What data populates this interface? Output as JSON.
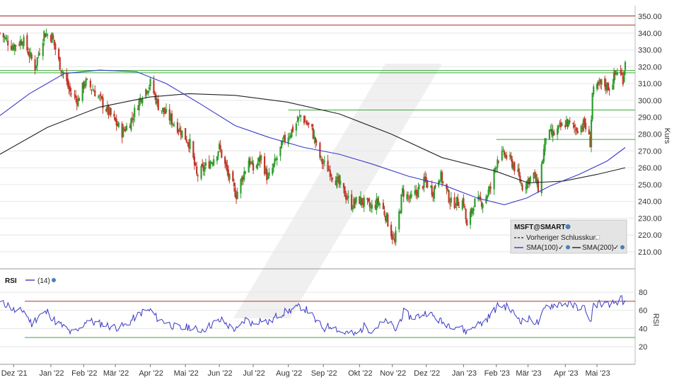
{
  "chart_data": [
    {
      "type": "candlestick",
      "symbol": "MSFT@SMART",
      "ylabel": "Kurs",
      "ylim": [
        200,
        352
      ],
      "yticks": [
        "350.00",
        "340.00",
        "330.00",
        "320.00",
        "310.00",
        "300.00",
        "290.00",
        "280.00",
        "270.00",
        "260.00",
        "250.00",
        "240.00",
        "230.00",
        "220.00",
        "210.00"
      ],
      "x_labels": [
        "Dez '21",
        "Jan '22",
        "Feb '22",
        "Mär '22",
        "Apr '22",
        "Mai '22",
        "Jun '22",
        "Jul '22",
        "Aug '22",
        "Sep '22",
        "Okt '22",
        "Nov '22",
        "Dez '22",
        "Jan '23",
        "Feb '23",
        "Mär '23",
        "Apr '23",
        "Mai '23"
      ],
      "close_series": [
        {
          "date": "2021-11-19",
          "v": 340
        },
        {
          "date": "2021-11-30",
          "v": 332
        },
        {
          "date": "2021-12-09",
          "v": 336
        },
        {
          "date": "2021-12-20",
          "v": 320
        },
        {
          "date": "2021-12-28",
          "v": 340
        },
        {
          "date": "2022-01-04",
          "v": 338
        },
        {
          "date": "2022-01-10",
          "v": 323
        },
        {
          "date": "2022-01-20",
          "v": 305
        },
        {
          "date": "2022-01-27",
          "v": 300
        },
        {
          "date": "2022-02-02",
          "v": 311
        },
        {
          "date": "2022-02-10",
          "v": 306
        },
        {
          "date": "2022-02-24",
          "v": 292
        },
        {
          "date": "2022-03-07",
          "v": 281
        },
        {
          "date": "2022-03-14",
          "v": 287
        },
        {
          "date": "2022-03-25",
          "v": 304
        },
        {
          "date": "2022-04-01",
          "v": 310
        },
        {
          "date": "2022-04-08",
          "v": 297
        },
        {
          "date": "2022-04-20",
          "v": 288
        },
        {
          "date": "2022-04-28",
          "v": 282
        },
        {
          "date": "2022-05-06",
          "v": 274
        },
        {
          "date": "2022-05-12",
          "v": 255
        },
        {
          "date": "2022-05-26",
          "v": 265
        },
        {
          "date": "2022-06-01",
          "v": 272
        },
        {
          "date": "2022-06-10",
          "v": 253
        },
        {
          "date": "2022-06-16",
          "v": 244
        },
        {
          "date": "2022-06-27",
          "v": 265
        },
        {
          "date": "2022-07-01",
          "v": 259
        },
        {
          "date": "2022-07-08",
          "v": 266
        },
        {
          "date": "2022-07-14",
          "v": 253
        },
        {
          "date": "2022-07-21",
          "v": 264
        },
        {
          "date": "2022-07-28",
          "v": 276
        },
        {
          "date": "2022-08-05",
          "v": 283
        },
        {
          "date": "2022-08-12",
          "v": 291
        },
        {
          "date": "2022-08-22",
          "v": 282
        },
        {
          "date": "2022-08-30",
          "v": 264
        },
        {
          "date": "2022-09-07",
          "v": 258
        },
        {
          "date": "2022-09-14",
          "v": 251
        },
        {
          "date": "2022-09-26",
          "v": 238
        },
        {
          "date": "2022-10-03",
          "v": 241
        },
        {
          "date": "2022-10-13",
          "v": 236
        },
        {
          "date": "2022-10-20",
          "v": 240
        },
        {
          "date": "2022-10-26",
          "v": 232
        },
        {
          "date": "2022-11-03",
          "v": 215
        },
        {
          "date": "2022-11-10",
          "v": 246
        },
        {
          "date": "2022-11-17",
          "v": 241
        },
        {
          "date": "2022-11-30",
          "v": 252
        },
        {
          "date": "2022-12-07",
          "v": 246
        },
        {
          "date": "2022-12-13",
          "v": 256
        },
        {
          "date": "2022-12-23",
          "v": 239
        },
        {
          "date": "2023-01-03",
          "v": 240
        },
        {
          "date": "2023-01-06",
          "v": 224
        },
        {
          "date": "2023-01-12",
          "v": 239
        },
        {
          "date": "2023-01-20",
          "v": 240
        },
        {
          "date": "2023-01-27",
          "v": 248
        },
        {
          "date": "2023-02-02",
          "v": 266
        },
        {
          "date": "2023-02-08",
          "v": 268
        },
        {
          "date": "2023-02-16",
          "v": 262
        },
        {
          "date": "2023-02-24",
          "v": 249
        },
        {
          "date": "2023-03-06",
          "v": 256
        },
        {
          "date": "2023-03-10",
          "v": 248
        },
        {
          "date": "2023-03-17",
          "v": 279
        },
        {
          "date": "2023-03-24",
          "v": 280
        },
        {
          "date": "2023-04-04",
          "v": 287
        },
        {
          "date": "2023-04-12",
          "v": 283
        },
        {
          "date": "2023-04-20",
          "v": 286
        },
        {
          "date": "2023-04-25",
          "v": 275
        },
        {
          "date": "2023-04-27",
          "v": 304
        },
        {
          "date": "2023-05-05",
          "v": 310
        },
        {
          "date": "2023-05-12",
          "v": 308
        },
        {
          "date": "2023-05-19",
          "v": 318
        },
        {
          "date": "2023-05-24",
          "v": 313
        },
        {
          "date": "2023-05-26",
          "v": 325
        }
      ],
      "sma100": [
        {
          "date": "2021-11-19",
          "v": 291
        },
        {
          "date": "2021-12-15",
          "v": 304
        },
        {
          "date": "2022-01-15",
          "v": 316
        },
        {
          "date": "2022-02-15",
          "v": 318
        },
        {
          "date": "2022-03-20",
          "v": 317
        },
        {
          "date": "2022-04-15",
          "v": 310
        },
        {
          "date": "2022-05-15",
          "v": 298
        },
        {
          "date": "2022-06-15",
          "v": 285
        },
        {
          "date": "2022-07-15",
          "v": 278
        },
        {
          "date": "2022-08-15",
          "v": 272
        },
        {
          "date": "2022-09-15",
          "v": 268
        },
        {
          "date": "2022-10-15",
          "v": 262
        },
        {
          "date": "2022-11-15",
          "v": 255
        },
        {
          "date": "2022-12-15",
          "v": 250
        },
        {
          "date": "2023-01-15",
          "v": 242
        },
        {
          "date": "2023-02-08",
          "v": 238
        },
        {
          "date": "2023-02-28",
          "v": 242
        },
        {
          "date": "2023-03-20",
          "v": 249
        },
        {
          "date": "2023-04-15",
          "v": 256
        },
        {
          "date": "2023-05-10",
          "v": 264
        },
        {
          "date": "2023-05-26",
          "v": 272
        }
      ],
      "sma200": [
        {
          "date": "2021-11-19",
          "v": 268
        },
        {
          "date": "2021-12-31",
          "v": 284
        },
        {
          "date": "2022-02-15",
          "v": 296
        },
        {
          "date": "2022-03-31",
          "v": 302
        },
        {
          "date": "2022-05-05",
          "v": 304
        },
        {
          "date": "2022-06-15",
          "v": 303
        },
        {
          "date": "2022-07-31",
          "v": 299
        },
        {
          "date": "2022-09-15",
          "v": 292
        },
        {
          "date": "2022-10-31",
          "v": 280
        },
        {
          "date": "2022-12-15",
          "v": 266
        },
        {
          "date": "2023-01-31",
          "v": 258
        },
        {
          "date": "2023-03-01",
          "v": 251
        },
        {
          "date": "2023-04-01",
          "v": 252
        },
        {
          "date": "2023-05-01",
          "v": 256
        },
        {
          "date": "2023-05-26",
          "v": 260
        }
      ],
      "horizontal_lines": [
        {
          "v": 350.2,
          "color": "#b03030"
        },
        {
          "v": 344.8,
          "color": "#b03030"
        },
        {
          "v": 317.8,
          "color": "#3aaa3a"
        },
        {
          "v": 316.4,
          "color": "#3aaa3a"
        }
      ],
      "segment_lines": [
        {
          "v": 294.3,
          "from": "2022-08-01",
          "color": "#3aaa3a"
        },
        {
          "v": 276.8,
          "from": "2023-02-01",
          "color": "#3aaa3a"
        }
      ],
      "legend": {
        "title": "MSFT@SMART",
        "prev_close": "Vorheriger Schlusskurs",
        "sma100": "SMA(100)",
        "sma200": "SMA(200)"
      }
    },
    {
      "type": "line",
      "title": "RSI",
      "period_label": "(14)",
      "ylabel": "RSI",
      "ylim": [
        10,
        88
      ],
      "yticks": [
        "80",
        "60",
        "40",
        "20"
      ],
      "levels": [
        {
          "v": 70,
          "color": "#b03030"
        },
        {
          "v": 30,
          "color": "#3aaa3a"
        }
      ],
      "series": [
        {
          "date": "2021-11-19",
          "v": 68
        },
        {
          "date": "2021-11-26",
          "v": 66
        },
        {
          "date": "2021-12-03",
          "v": 58
        },
        {
          "date": "2021-12-10",
          "v": 60
        },
        {
          "date": "2021-12-17",
          "v": 45
        },
        {
          "date": "2021-12-24",
          "v": 55
        },
        {
          "date": "2021-12-31",
          "v": 58
        },
        {
          "date": "2022-01-07",
          "v": 48
        },
        {
          "date": "2022-01-14",
          "v": 42
        },
        {
          "date": "2022-01-21",
          "v": 35
        },
        {
          "date": "2022-01-28",
          "v": 38
        },
        {
          "date": "2022-02-04",
          "v": 50
        },
        {
          "date": "2022-02-11",
          "v": 46
        },
        {
          "date": "2022-02-18",
          "v": 45
        },
        {
          "date": "2022-02-25",
          "v": 42
        },
        {
          "date": "2022-03-04",
          "v": 41
        },
        {
          "date": "2022-03-11",
          "v": 44
        },
        {
          "date": "2022-03-18",
          "v": 52
        },
        {
          "date": "2022-03-25",
          "v": 58
        },
        {
          "date": "2022-04-01",
          "v": 60
        },
        {
          "date": "2022-04-08",
          "v": 50
        },
        {
          "date": "2022-04-15",
          "v": 47
        },
        {
          "date": "2022-04-22",
          "v": 42
        },
        {
          "date": "2022-04-29",
          "v": 40
        },
        {
          "date": "2022-05-06",
          "v": 42
        },
        {
          "date": "2022-05-13",
          "v": 38
        },
        {
          "date": "2022-05-20",
          "v": 40
        },
        {
          "date": "2022-05-27",
          "v": 46
        },
        {
          "date": "2022-06-03",
          "v": 49
        },
        {
          "date": "2022-06-10",
          "v": 42
        },
        {
          "date": "2022-06-17",
          "v": 38
        },
        {
          "date": "2022-06-24",
          "v": 50
        },
        {
          "date": "2022-07-01",
          "v": 45
        },
        {
          "date": "2022-07-08",
          "v": 50
        },
        {
          "date": "2022-07-15",
          "v": 46
        },
        {
          "date": "2022-07-22",
          "v": 54
        },
        {
          "date": "2022-07-29",
          "v": 58
        },
        {
          "date": "2022-08-05",
          "v": 61
        },
        {
          "date": "2022-08-12",
          "v": 64
        },
        {
          "date": "2022-08-19",
          "v": 59
        },
        {
          "date": "2022-08-26",
          "v": 47
        },
        {
          "date": "2022-09-02",
          "v": 40
        },
        {
          "date": "2022-09-09",
          "v": 44
        },
        {
          "date": "2022-09-16",
          "v": 36
        },
        {
          "date": "2022-09-23",
          "v": 35
        },
        {
          "date": "2022-09-30",
          "v": 33
        },
        {
          "date": "2022-10-07",
          "v": 42
        },
        {
          "date": "2022-10-14",
          "v": 38
        },
        {
          "date": "2022-10-21",
          "v": 44
        },
        {
          "date": "2022-10-28",
          "v": 48
        },
        {
          "date": "2022-11-04",
          "v": 38
        },
        {
          "date": "2022-11-11",
          "v": 58
        },
        {
          "date": "2022-11-18",
          "v": 52
        },
        {
          "date": "2022-11-25",
          "v": 54
        },
        {
          "date": "2022-12-02",
          "v": 58
        },
        {
          "date": "2022-12-09",
          "v": 52
        },
        {
          "date": "2022-12-16",
          "v": 46
        },
        {
          "date": "2022-12-23",
          "v": 44
        },
        {
          "date": "2022-12-30",
          "v": 42
        },
        {
          "date": "2023-01-06",
          "v": 36
        },
        {
          "date": "2023-01-13",
          "v": 44
        },
        {
          "date": "2023-01-20",
          "v": 46
        },
        {
          "date": "2023-01-27",
          "v": 55
        },
        {
          "date": "2023-02-03",
          "v": 66
        },
        {
          "date": "2023-02-10",
          "v": 64
        },
        {
          "date": "2023-02-17",
          "v": 56
        },
        {
          "date": "2023-02-24",
          "v": 48
        },
        {
          "date": "2023-03-03",
          "v": 50
        },
        {
          "date": "2023-03-10",
          "v": 46
        },
        {
          "date": "2023-03-17",
          "v": 64
        },
        {
          "date": "2023-03-24",
          "v": 66
        },
        {
          "date": "2023-03-31",
          "v": 68
        },
        {
          "date": "2023-04-07",
          "v": 66
        },
        {
          "date": "2023-04-14",
          "v": 64
        },
        {
          "date": "2023-04-21",
          "v": 62
        },
        {
          "date": "2023-04-25",
          "v": 45
        },
        {
          "date": "2023-04-28",
          "v": 66
        },
        {
          "date": "2023-05-05",
          "v": 68
        },
        {
          "date": "2023-05-12",
          "v": 65
        },
        {
          "date": "2023-05-19",
          "v": 70
        },
        {
          "date": "2023-05-23",
          "v": 73
        },
        {
          "date": "2023-05-24",
          "v": 62
        },
        {
          "date": "2023-05-26",
          "v": 70
        }
      ]
    }
  ]
}
